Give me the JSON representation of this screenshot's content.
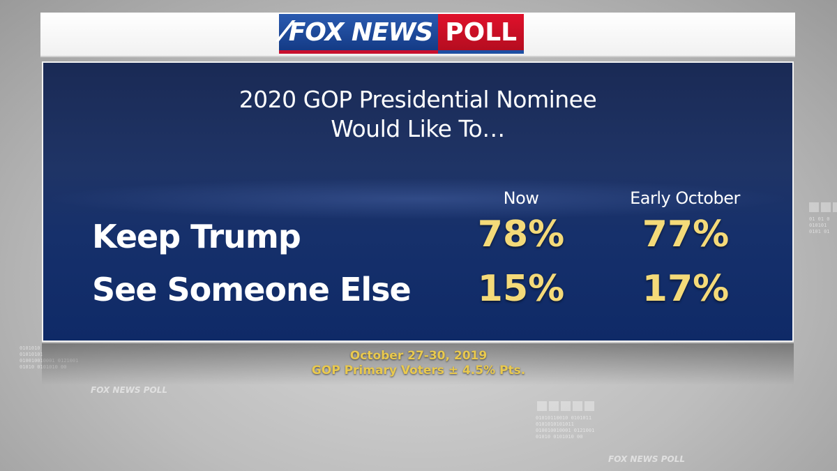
{
  "brand": {
    "logo_text_fox": "FOX NEWS",
    "logo_text_poll": "POLL",
    "watermark": "FOX NEWS POLL"
  },
  "title": {
    "line1": "2020 GOP Presidential Nominee",
    "line2": "Would Like To…"
  },
  "columns": [
    "Now",
    "Early October"
  ],
  "rows": [
    {
      "label": "Keep Trump",
      "values": [
        "78%",
        "77%"
      ]
    },
    {
      "label": "See Someone Else",
      "values": [
        "15%",
        "17%"
      ]
    }
  ],
  "footer": {
    "dates": "October 27-30, 2019",
    "sample": "GOP Primary Voters ± 4.5% Pts."
  },
  "colors": {
    "panel_blue": "#1a2f66",
    "value_yellow": "#f4da79",
    "brand_red": "#c8102e",
    "brand_blue": "#1e4fa3"
  }
}
